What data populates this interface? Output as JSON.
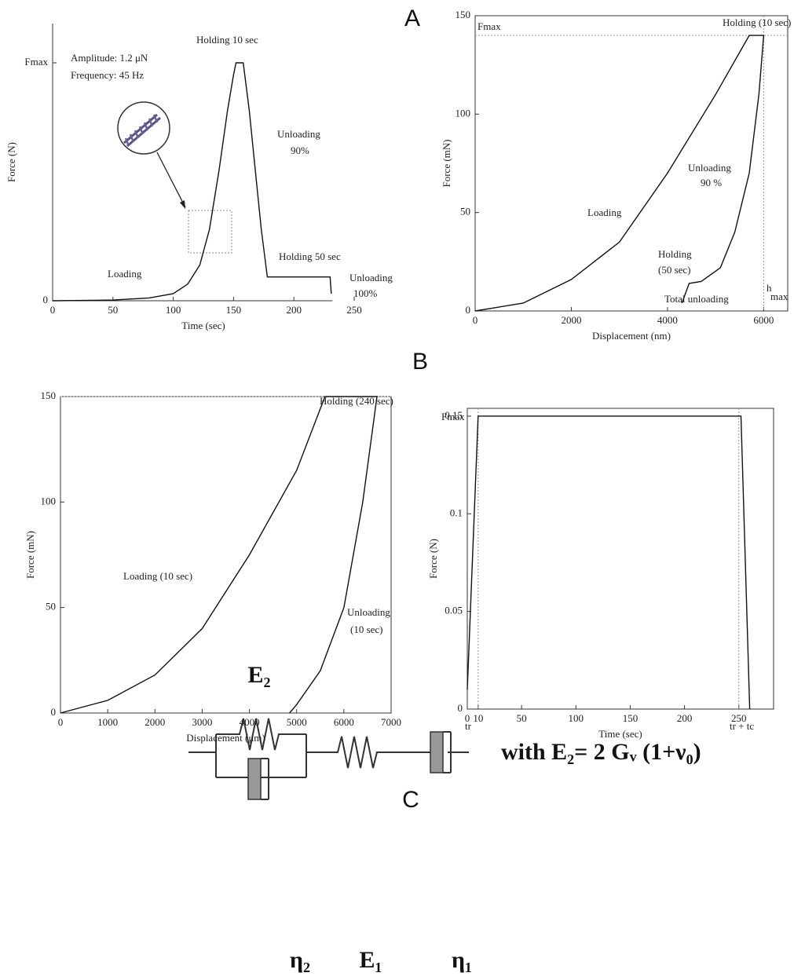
{
  "panels": [
    "A",
    "B",
    "C"
  ],
  "chart_data": [
    {
      "type": "line",
      "xlabel": "Time (sec)",
      "ylabel": "Force (N)",
      "box": false,
      "grid": false,
      "color": "#111111",
      "xlim": [
        0,
        250
      ],
      "ylim": [
        0,
        1.165
      ],
      "xticks": [
        0,
        50,
        100,
        150,
        200,
        250
      ],
      "yticks": [
        0,
        {
          "value": 1,
          "label": "Fmax"
        }
      ],
      "x": [
        0,
        50,
        80,
        100,
        112,
        122,
        130,
        138,
        145,
        150,
        152,
        158,
        163,
        168,
        173,
        178,
        230,
        231
      ],
      "values": [
        0,
        0.003,
        0.012,
        0.03,
        0.07,
        0.15,
        0.3,
        0.55,
        0.8,
        0.95,
        1.0,
        1.0,
        0.8,
        0.55,
        0.3,
        0.1,
        0.1,
        0.03
      ],
      "hlines": [],
      "vlines": [],
      "annotations": [
        "Amplitude: 1.2 μN",
        "Frequency: 45 Hz",
        "Holding 10 sec",
        "Unloading",
        "90%",
        "Holding 50 sec",
        "Unloading",
        "100%",
        "Loading"
      ]
    },
    {
      "type": "line",
      "xlabel": "Displacement (nm)",
      "ylabel": "Force (mN)",
      "box": true,
      "grid": false,
      "color": "#111111",
      "xlim": [
        0,
        6500
      ],
      "ylim": [
        0,
        150
      ],
      "xticks": [
        0,
        2000,
        4000,
        6000
      ],
      "yticks": [
        0,
        50,
        100,
        150
      ],
      "x": [
        0,
        1000,
        2000,
        3000,
        4000,
        5000,
        5700,
        6000,
        5900,
        5700,
        5400,
        5100,
        4700,
        4450,
        4300
      ],
      "values": [
        0,
        4,
        16,
        35,
        70,
        110,
        140,
        140,
        110,
        70,
        40,
        22,
        15,
        14,
        4
      ],
      "hlines": [
        140
      ],
      "vlines": [
        6000
      ],
      "annotations": [
        "Fmax",
        "Holding (10 sec)",
        "Loading",
        "Unloading",
        "90 %",
        "Holding",
        "(50 sec)",
        "Total unloading",
        "h",
        "max"
      ]
    },
    {
      "type": "line",
      "xlabel": "Displacement (μm)",
      "ylabel": "Force (mN)",
      "box": true,
      "grid": false,
      "color": "#111111",
      "xlim": [
        0,
        7000
      ],
      "ylim": [
        0,
        150
      ],
      "xticks": [
        0,
        1000,
        2000,
        3000,
        4000,
        5000,
        6000,
        7000
      ],
      "yticks": [
        0,
        50,
        100,
        150
      ],
      "x": [
        0,
        1000,
        2000,
        3000,
        4000,
        5000,
        5600,
        6700,
        6400,
        6000,
        5500,
        5000,
        4850
      ],
      "values": [
        0,
        6,
        18,
        40,
        75,
        115,
        150,
        150,
        100,
        50,
        20,
        4,
        0
      ],
      "hlines": [
        150
      ],
      "vlines": [],
      "annotations": [
        "Holding (240 sec)",
        "Loading (10 sec)",
        "Unloading",
        "(10 sec)"
      ]
    },
    {
      "type": "line",
      "xlabel": "Time (sec)",
      "ylabel": "Force (N)",
      "box": true,
      "grid": false,
      "color": "#111111",
      "xlim": [
        0,
        282
      ],
      "ylim": [
        0,
        0.154
      ],
      "xticks": [
        0,
        10,
        50,
        100,
        150,
        200,
        250
      ],
      "yticks": [
        0,
        0.05,
        0.1,
        {
          "value": 0.15,
          "label": "0,15"
        }
      ],
      "x": [
        0,
        10,
        252,
        260
      ],
      "values": [
        0.01,
        0.15,
        0.15,
        0
      ],
      "hlines": [],
      "vlines": [
        10,
        250
      ],
      "annotations": [
        "Fmax",
        "tr",
        "tr + tc"
      ]
    }
  ],
  "diagram": {
    "labels": [
      "E₂",
      "η₂",
      "E₁",
      "η₁"
    ],
    "equation": "with E₂= 2 Gᵥ (1+ν₀)"
  }
}
